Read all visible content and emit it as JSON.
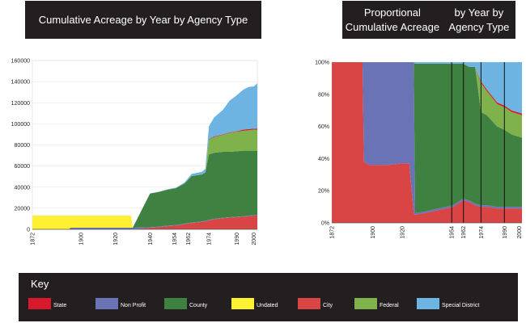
{
  "charts": {
    "left": {
      "title": "Cumulative Acreage by Year by Agency Type"
    },
    "right": {
      "title_line1": "Proportional Cumulative Acreage",
      "title_line2": "by Year by Agency Type"
    }
  },
  "key": {
    "title": "Key",
    "items": [
      {
        "label": "State",
        "color": "#d7192b"
      },
      {
        "label": "Non Profit",
        "color": "#6b73b7"
      },
      {
        "label": "County",
        "color": "#3f8140"
      },
      {
        "label": "Undated",
        "color": "#fff031"
      },
      {
        "label": "City",
        "color": "#d94444"
      },
      {
        "label": "Federal",
        "color": "#7fb24b"
      },
      {
        "label": "Special District",
        "color": "#6db4e2"
      }
    ]
  },
  "chart_data": [
    {
      "type": "area",
      "stacked": true,
      "x": [
        1872,
        1893,
        1894,
        1929,
        1930,
        1940,
        1945,
        1950,
        1955,
        1960,
        1964,
        1970,
        1972,
        1974,
        1977,
        1982,
        1986,
        1990,
        1994,
        1997,
        2000,
        2002
      ],
      "xticks": [
        "1872",
        "1900",
        "1920",
        "1940",
        "1954",
        "1962",
        "1974",
        "1990",
        "2000"
      ],
      "ylim": [
        0,
        160000
      ],
      "yticks": [
        "0",
        "20000",
        "40000",
        "60000",
        "80000",
        "100000",
        "120000",
        "140000",
        "160000"
      ],
      "grid": true,
      "series": [
        {
          "name": "City",
          "color": "#d94444",
          "values": [
            0,
            0,
            0,
            0,
            0,
            1500,
            2000,
            3000,
            3500,
            5000,
            6000,
            7000,
            7500,
            8500,
            9500,
            10500,
            11000,
            11500,
            12000,
            12500,
            13000,
            13000
          ]
        },
        {
          "name": "Non Profit",
          "color": "#6b73b7",
          "values": [
            0,
            0,
            1500,
            1500,
            1500,
            500,
            500,
            500,
            500,
            500,
            500,
            500,
            500,
            500,
            500,
            500,
            500,
            500,
            500,
            500,
            500,
            500
          ]
        },
        {
          "name": "County",
          "color": "#3f8140",
          "values": [
            0,
            0,
            0,
            0,
            0,
            32000,
            33000,
            34000,
            35000,
            38000,
            44000,
            44500,
            46000,
            62000,
            62500,
            62500,
            62000,
            62000,
            62000,
            61500,
            61000,
            61000
          ]
        },
        {
          "name": "Federal",
          "color": "#7fb24b",
          "values": [
            0,
            0,
            0,
            0,
            0,
            0,
            0,
            0,
            0,
            0,
            0,
            0,
            0,
            14000,
            15000,
            16000,
            18000,
            18500,
            19000,
            19500,
            20000,
            20000
          ]
        },
        {
          "name": "State",
          "color": "#d7192b",
          "values": [
            0,
            0,
            0,
            0,
            0,
            0,
            0,
            0,
            0,
            0,
            0,
            0,
            0,
            500,
            500,
            500,
            500,
            500,
            1000,
            1000,
            1000,
            1000
          ]
        },
        {
          "name": "Special District",
          "color": "#6db4e2",
          "values": [
            0,
            0,
            0,
            0,
            0,
            0,
            0,
            500,
            500,
            1000,
            2000,
            2500,
            3500,
            12000,
            18000,
            23000,
            30000,
            34000,
            38000,
            40000,
            40000,
            43000
          ]
        },
        {
          "name": "Undated",
          "color": "#fff031",
          "values": [
            13000,
            13000,
            11500,
            11500,
            0,
            0,
            0,
            0,
            0,
            0,
            0,
            0,
            0,
            0,
            0,
            0,
            0,
            0,
            0,
            0,
            0,
            0
          ]
        }
      ]
    },
    {
      "type": "area",
      "stacked": true,
      "normalized": true,
      "x": [
        1872,
        1893,
        1894,
        1898,
        1910,
        1920,
        1925,
        1928,
        1929,
        1935,
        1940,
        1950,
        1955,
        1960,
        1962,
        1966,
        1968,
        1970,
        1974,
        1978,
        1985,
        1990,
        1995,
        2002
      ],
      "xticks": [
        "1872",
        "1900",
        "1920",
        "1954",
        "1962",
        "1974",
        "1990",
        "2000"
      ],
      "ylim": [
        0,
        100
      ],
      "yticks": [
        "0%",
        "20%",
        "40%",
        "60%",
        "80%",
        "100%"
      ],
      "vertical_lines": [
        1954,
        1962,
        1974,
        1990
      ],
      "series": [
        {
          "name": "City",
          "color": "#d94444",
          "values": [
            100,
            100,
            38,
            36,
            36,
            37,
            37,
            6,
            5,
            6,
            7,
            9,
            10,
            13,
            14,
            13,
            12,
            11,
            10,
            10,
            9,
            9,
            9,
            9
          ]
        },
        {
          "name": "Non Profit",
          "color": "#6b73b7",
          "values": [
            0,
            0,
            62,
            64,
            64,
            63,
            63,
            94,
            1,
            1,
            1,
            1,
            1,
            1,
            1,
            1,
            1,
            1,
            1,
            1,
            1,
            1,
            1,
            1
          ]
        },
        {
          "name": "County",
          "color": "#3f8140",
          "values": [
            0,
            0,
            0,
            0,
            0,
            0,
            0,
            0,
            93,
            92,
            91,
            89,
            88,
            85,
            84,
            83,
            84,
            85,
            58,
            56,
            50,
            48,
            45,
            43
          ]
        },
        {
          "name": "Federal",
          "color": "#7fb24b",
          "values": [
            0,
            0,
            0,
            0,
            0,
            0,
            0,
            0,
            0,
            0,
            0,
            0,
            0,
            0,
            0,
            0,
            0,
            0,
            18,
            15,
            14,
            14,
            14,
            14
          ]
        },
        {
          "name": "State",
          "color": "#d7192b",
          "values": [
            0,
            0,
            0,
            0,
            0,
            0,
            0,
            0,
            0,
            0,
            0,
            0,
            0,
            0,
            0,
            0,
            0,
            0,
            1,
            1,
            1,
            1,
            1,
            1
          ]
        },
        {
          "name": "Special District",
          "color": "#6db4e2",
          "values": [
            0,
            0,
            0,
            0,
            0,
            0,
            0,
            0,
            1,
            1,
            1,
            1,
            1,
            1,
            1,
            3,
            3,
            3,
            12,
            17,
            25,
            27,
            30,
            32
          ]
        },
        {
          "name": "Undated",
          "color": "#fff031",
          "values": [
            0,
            0,
            0,
            0,
            0,
            0,
            0,
            0,
            0,
            0,
            0,
            0,
            0,
            0,
            0,
            0,
            0,
            0,
            0,
            0,
            0,
            0,
            0,
            0
          ]
        }
      ]
    }
  ]
}
